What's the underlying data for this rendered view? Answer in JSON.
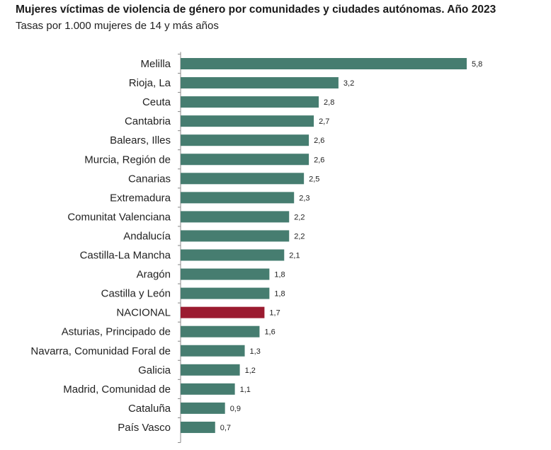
{
  "chart_data": {
    "type": "bar",
    "orientation": "horizontal",
    "title": "Mujeres víctimas de violencia de género por comunidades y ciudades autónomas. Año 2023",
    "subtitle": "Tasas por 1.000 mujeres de 14 y más años",
    "categories": [
      "Melilla",
      "Rioja, La",
      "Ceuta",
      "Cantabria",
      "Balears, Illes",
      "Murcia, Región de",
      "Canarias",
      "Extremadura",
      "Comunitat Valenciana",
      "Andalucía",
      "Castilla-La Mancha",
      "Aragón",
      "Castilla y León",
      "NACIONAL",
      "Asturias, Principado de",
      "Navarra, Comunidad Foral de",
      "Galicia",
      "Madrid, Comunidad de",
      "Cataluña",
      "País Vasco"
    ],
    "values": [
      5.8,
      3.2,
      2.8,
      2.7,
      2.6,
      2.6,
      2.5,
      2.3,
      2.2,
      2.2,
      2.1,
      1.8,
      1.8,
      1.7,
      1.6,
      1.3,
      1.2,
      1.1,
      0.9,
      0.7
    ],
    "value_labels": [
      "5,8",
      "3,2",
      "2,8",
      "2,7",
      "2,6",
      "2,6",
      "2,5",
      "2,3",
      "2,2",
      "2,2",
      "2,1",
      "1,8",
      "1,8",
      "1,7",
      "1,6",
      "1,3",
      "1,2",
      "1,1",
      "0,9",
      "0,7"
    ],
    "highlight_category": "NACIONAL",
    "xlim": [
      0,
      5.8
    ],
    "colors": {
      "bar": "#467d70",
      "highlight": "#9b1b30",
      "axis": "#888888"
    }
  }
}
